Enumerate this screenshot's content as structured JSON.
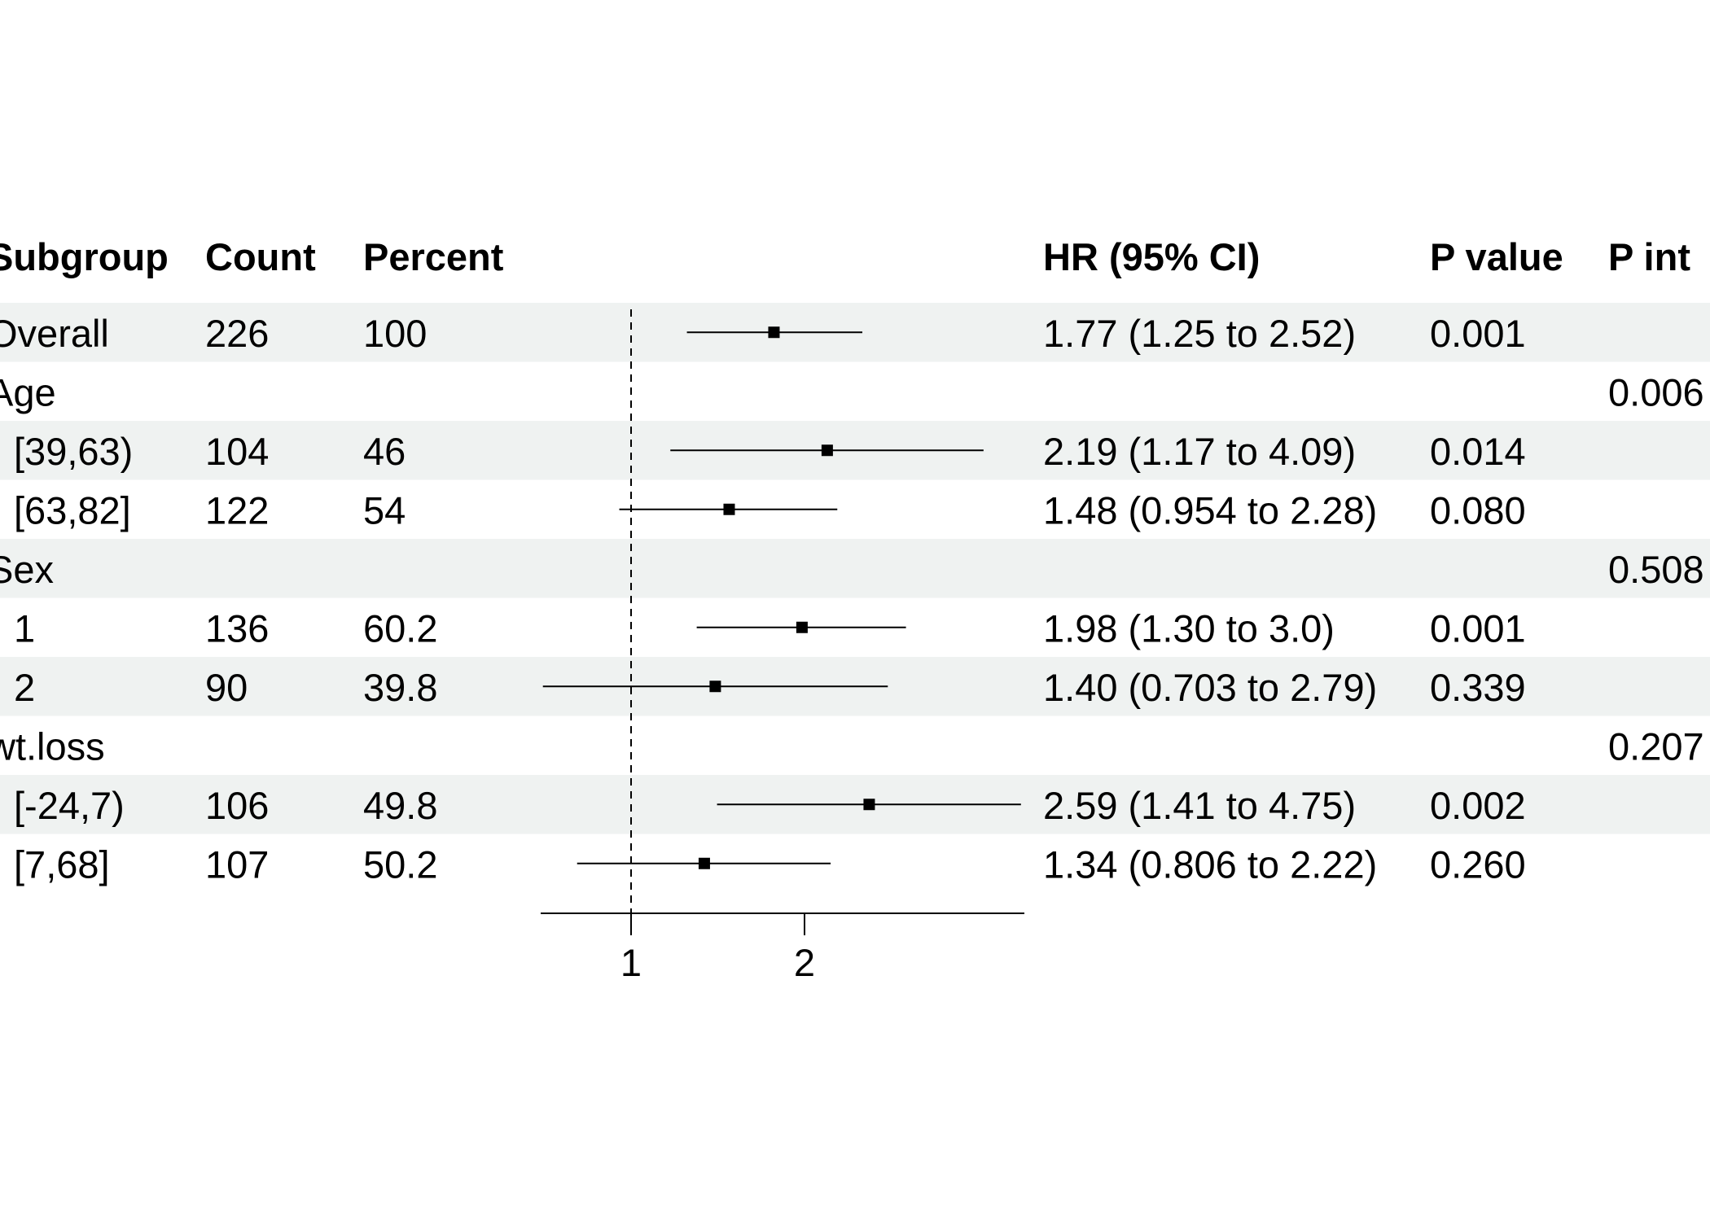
{
  "chart_data": {
    "type": "forest",
    "headers": {
      "subgroup": "Subgroup",
      "count": "Count",
      "percent": "Percent",
      "estimate": "HR (95% CI)",
      "p_value": "P value",
      "p_interaction": "P int"
    },
    "rows": [
      {
        "label": "Overall",
        "indent": false,
        "count": "226",
        "percent": "100",
        "estimate_text": "1.77 (1.25 to 2.52)",
        "p": "0.001",
        "p_int": "",
        "hr": 1.77,
        "lo": 1.25,
        "hi": 2.52,
        "shaded": true
      },
      {
        "label": "Age",
        "indent": false,
        "count": "",
        "percent": "",
        "estimate_text": "",
        "p": "",
        "p_int": "0.006",
        "hr": null,
        "lo": null,
        "hi": null,
        "shaded": false
      },
      {
        "label": "[39,63)",
        "indent": true,
        "count": "104",
        "percent": "46",
        "estimate_text": "2.19 (1.17 to 4.09)",
        "p": "0.014",
        "p_int": "",
        "hr": 2.19,
        "lo": 1.17,
        "hi": 4.09,
        "shaded": true
      },
      {
        "label": "[63,82]",
        "indent": true,
        "count": "122",
        "percent": "54",
        "estimate_text": "1.48 (0.954 to 2.28)",
        "p": "0.080",
        "p_int": "",
        "hr": 1.48,
        "lo": 0.954,
        "hi": 2.28,
        "shaded": false
      },
      {
        "label": "Sex",
        "indent": false,
        "count": "",
        "percent": "",
        "estimate_text": "",
        "p": "",
        "p_int": "0.508",
        "hr": null,
        "lo": null,
        "hi": null,
        "shaded": true
      },
      {
        "label": "1",
        "indent": true,
        "count": "136",
        "percent": "60.2",
        "estimate_text": "1.98 (1.30 to  3.0)",
        "p": "0.001",
        "p_int": "",
        "hr": 1.98,
        "lo": 1.3,
        "hi": 3.0,
        "shaded": false
      },
      {
        "label": "2",
        "indent": true,
        "count": "90",
        "percent": "39.8",
        "estimate_text": "1.40 (0.703 to 2.79)",
        "p": "0.339",
        "p_int": "",
        "hr": 1.4,
        "lo": 0.703,
        "hi": 2.79,
        "shaded": true
      },
      {
        "label": "wt.loss",
        "indent": false,
        "count": "",
        "percent": "",
        "estimate_text": "",
        "p": "",
        "p_int": "0.207",
        "hr": null,
        "lo": null,
        "hi": null,
        "shaded": false
      },
      {
        "label": "[-24,7)",
        "indent": true,
        "count": "106",
        "percent": "49.8",
        "estimate_text": "2.59 (1.41 to 4.75)",
        "p": "0.002",
        "p_int": "",
        "hr": 2.59,
        "lo": 1.41,
        "hi": 4.75,
        "shaded": true
      },
      {
        "label": "[7,68]",
        "indent": true,
        "count": "107",
        "percent": "50.2",
        "estimate_text": "1.34 (0.806 to 2.22)",
        "p": "0.260",
        "p_int": "",
        "hr": 1.34,
        "lo": 0.806,
        "hi": 2.22,
        "shaded": false
      }
    ],
    "x_axis": {
      "scale": "log",
      "ticks": [
        1,
        2
      ],
      "tick_labels": [
        "1",
        "2"
      ],
      "range": [
        0.6,
        4.75
      ],
      "reference_line": 1
    },
    "colors": {
      "row_shade": "#eff2f1",
      "ink": "#000000"
    }
  }
}
